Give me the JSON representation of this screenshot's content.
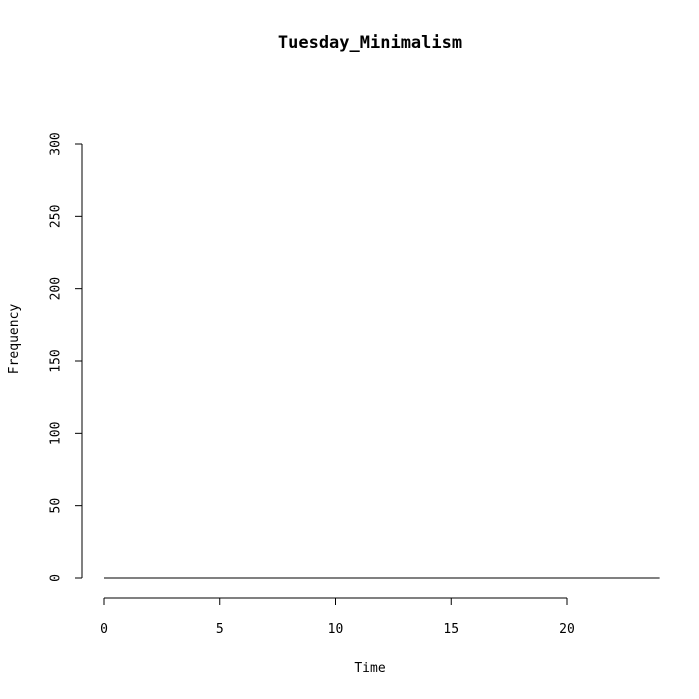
{
  "chart_data": {
    "type": "line",
    "title": "Tuesday_Minimalism",
    "xlabel": "Time",
    "ylabel": "Frequency",
    "xlim": [
      0,
      24
    ],
    "ylim": [
      0,
      300
    ],
    "x_ticks": [
      0,
      5,
      10,
      15,
      20
    ],
    "y_ticks": [
      0,
      50,
      100,
      150,
      200,
      250,
      300
    ],
    "grid": false,
    "series": [
      {
        "x": [
          0,
          1,
          2,
          3,
          4,
          5,
          6,
          7,
          8,
          9,
          10,
          11,
          12,
          13,
          14,
          15,
          16,
          17,
          18,
          19,
          20,
          21,
          22,
          23,
          24
        ],
        "values": [
          0,
          0,
          0,
          0,
          0,
          0,
          0,
          0,
          0,
          0,
          0,
          0,
          0,
          0,
          0,
          0,
          0,
          0,
          0,
          0,
          0,
          0,
          0,
          0,
          0
        ]
      }
    ]
  }
}
